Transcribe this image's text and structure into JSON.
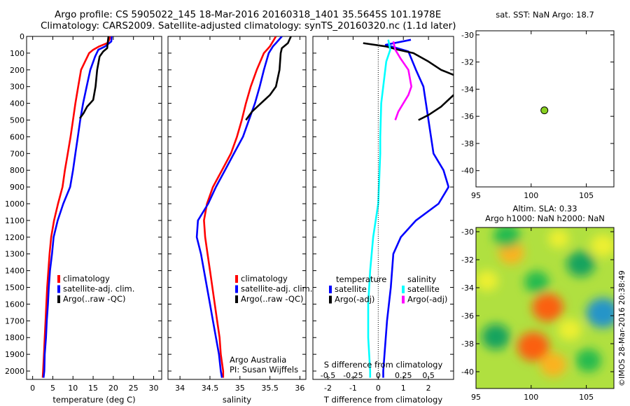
{
  "header": {
    "line1": "Argo profile: CS 5905022_145 18-Mar-2016 20160318_1401 35.5645S 101.1978E",
    "line2": "Climatology: CARS2009. Satellite-adjusted climatology: synTS_20160320.nc (1.1d later)"
  },
  "colors": {
    "climatology": "#ff0000",
    "satellite": "#0000ff",
    "argo": "#000000",
    "s_satellite": "#00ffff",
    "s_argo": "#ff00ff",
    "marker": "#88d020"
  },
  "chart_data": [
    {
      "type": "line",
      "id": "temperature",
      "xlabel": "temperature (deg C)",
      "xticks": [
        0,
        5,
        10,
        15,
        20,
        25,
        30
      ],
      "xlim": [
        -1.5,
        32
      ],
      "yticks": [
        0,
        100,
        200,
        300,
        400,
        500,
        600,
        700,
        800,
        900,
        1000,
        1100,
        1200,
        1300,
        1400,
        1500,
        1600,
        1700,
        1800,
        1900,
        2000
      ],
      "ylim": [
        2050,
        0
      ],
      "legend": [
        "climatology",
        "satellite-adj. clim.",
        "Argo(..raw -QC)"
      ],
      "series": [
        {
          "name": "climatology",
          "color": "#ff0000",
          "points": [
            [
              19.2,
              0
            ],
            [
              19,
              20
            ],
            [
              18.5,
              40
            ],
            [
              16.5,
              60
            ],
            [
              15,
              80
            ],
            [
              14,
              100
            ],
            [
              13,
              150
            ],
            [
              12,
              200
            ],
            [
              11.3,
              300
            ],
            [
              10.6,
              400
            ],
            [
              10,
              500
            ],
            [
              9.4,
              600
            ],
            [
              8.7,
              700
            ],
            [
              8,
              800
            ],
            [
              7.4,
              900
            ],
            [
              6.3,
              1000
            ],
            [
              5.3,
              1100
            ],
            [
              4.6,
              1200
            ],
            [
              4.2,
              1300
            ],
            [
              3.9,
              1400
            ],
            [
              3.6,
              1500
            ],
            [
              3.4,
              1600
            ],
            [
              3.2,
              1700
            ],
            [
              3,
              1800
            ],
            [
              2.8,
              1900
            ],
            [
              2.6,
              2000
            ],
            [
              2.5,
              2040
            ]
          ]
        },
        {
          "name": "satellite-adj. clim.",
          "color": "#0000ff",
          "points": [
            [
              19.6,
              0
            ],
            [
              19.5,
              30
            ],
            [
              18,
              60
            ],
            [
              16.3,
              80
            ],
            [
              15.5,
              120
            ],
            [
              14.3,
              200
            ],
            [
              13.4,
              300
            ],
            [
              12.5,
              400
            ],
            [
              11.8,
              500
            ],
            [
              11.2,
              600
            ],
            [
              10.6,
              700
            ],
            [
              10,
              800
            ],
            [
              9.3,
              900
            ],
            [
              7.6,
              1000
            ],
            [
              6.2,
              1100
            ],
            [
              5.2,
              1200
            ],
            [
              4.8,
              1300
            ],
            [
              4.3,
              1400
            ],
            [
              4,
              1500
            ],
            [
              3.8,
              1600
            ],
            [
              3.5,
              1700
            ],
            [
              3.3,
              1800
            ],
            [
              3,
              1900
            ],
            [
              2.9,
              2000
            ],
            [
              2.7,
              2040
            ]
          ]
        },
        {
          "name": "Argo(..raw -QC)",
          "color": "#000000",
          "points": [
            [
              18.8,
              0
            ],
            [
              18.6,
              40
            ],
            [
              18.5,
              70
            ],
            [
              17.5,
              90
            ],
            [
              16.6,
              120
            ],
            [
              16,
              200
            ],
            [
              15.6,
              300
            ],
            [
              15,
              380
            ],
            [
              13.5,
              420
            ],
            [
              12.6,
              460
            ],
            [
              11.7,
              490
            ]
          ]
        }
      ]
    },
    {
      "type": "line",
      "id": "salinity",
      "xlabel": "salinity",
      "xticks": [
        34,
        34.5,
        35,
        35.5,
        36
      ],
      "xlim": [
        33.8,
        36.1
      ],
      "yticks": [
        0,
        100,
        200,
        300,
        400,
        500,
        600,
        700,
        800,
        900,
        1000,
        1100,
        1200,
        1300,
        1400,
        1500,
        1600,
        1700,
        1800,
        1900,
        2000
      ],
      "ylim": [
        2050,
        0
      ],
      "legend": [
        "climatology",
        "satellite-adj. clim.",
        "Argo(..raw -QC)"
      ],
      "annotation": [
        "Argo Australia",
        "PI: Susan Wijffels"
      ],
      "series": [
        {
          "name": "climatology",
          "color": "#ff0000",
          "points": [
            [
              35.6,
              0
            ],
            [
              35.5,
              60
            ],
            [
              35.4,
              100
            ],
            [
              35.28,
              200
            ],
            [
              35.18,
              300
            ],
            [
              35.1,
              400
            ],
            [
              35.03,
              500
            ],
            [
              34.95,
              600
            ],
            [
              34.85,
              700
            ],
            [
              34.7,
              800
            ],
            [
              34.55,
              900
            ],
            [
              34.45,
              1000
            ],
            [
              34.4,
              1100
            ],
            [
              34.42,
              1200
            ],
            [
              34.46,
              1300
            ],
            [
              34.5,
              1400
            ],
            [
              34.54,
              1500
            ],
            [
              34.58,
              1600
            ],
            [
              34.62,
              1700
            ],
            [
              34.66,
              1800
            ],
            [
              34.68,
              1900
            ],
            [
              34.72,
              2000
            ],
            [
              34.72,
              2040
            ]
          ]
        },
        {
          "name": "satellite-adj. clim.",
          "color": "#0000ff",
          "points": [
            [
              35.7,
              0
            ],
            [
              35.6,
              40
            ],
            [
              35.55,
              60
            ],
            [
              35.48,
              100
            ],
            [
              35.4,
              200
            ],
            [
              35.33,
              300
            ],
            [
              35.25,
              400
            ],
            [
              35.15,
              500
            ],
            [
              35.05,
              600
            ],
            [
              34.9,
              700
            ],
            [
              34.75,
              800
            ],
            [
              34.6,
              900
            ],
            [
              34.47,
              1000
            ],
            [
              34.3,
              1100
            ],
            [
              34.28,
              1200
            ],
            [
              34.35,
              1300
            ],
            [
              34.4,
              1400
            ],
            [
              34.45,
              1500
            ],
            [
              34.5,
              1600
            ],
            [
              34.55,
              1700
            ],
            [
              34.6,
              1800
            ],
            [
              34.65,
              1900
            ],
            [
              34.68,
              2000
            ],
            [
              34.7,
              2040
            ]
          ]
        },
        {
          "name": "Argo(..raw -QC)",
          "color": "#000000",
          "points": [
            [
              35.85,
              0
            ],
            [
              35.8,
              40
            ],
            [
              35.7,
              70
            ],
            [
              35.68,
              100
            ],
            [
              35.66,
              200
            ],
            [
              35.6,
              300
            ],
            [
              35.5,
              350
            ],
            [
              35.35,
              400
            ],
            [
              35.2,
              450
            ],
            [
              35.1,
              500
            ]
          ]
        }
      ]
    },
    {
      "type": "line",
      "id": "difference",
      "xlabel": "T difference from climatology",
      "xlabel_top": "S difference from climatology",
      "xticks": [
        -2,
        -1,
        0,
        1,
        2
      ],
      "xlim": [
        -2.6,
        3.0
      ],
      "xticks_top": [
        -0.5,
        -0.25,
        0,
        0.25,
        0.5
      ],
      "xlim_top": [
        -0.65,
        0.75
      ],
      "yticks": [
        0,
        100,
        200,
        300,
        400,
        500,
        600,
        700,
        800,
        900,
        1000,
        1100,
        1200,
        1300,
        1400,
        1500,
        1600,
        1700,
        1800,
        1900,
        2000
      ],
      "ylim": [
        2050,
        0
      ],
      "legend": {
        "temperature": [
          "satellite",
          "Argo(-adj)"
        ],
        "salinity": [
          "satellite",
          "Argo(-adj)"
        ]
      },
      "series": [
        {
          "name": "T satellite",
          "axis": "T",
          "color": "#0000ff",
          "points": [
            [
              1.3,
              20
            ],
            [
              0.3,
              50
            ],
            [
              1.2,
              90
            ],
            [
              1.5,
              200
            ],
            [
              1.8,
              300
            ],
            [
              1.9,
              400
            ],
            [
              2,
              500
            ],
            [
              2.1,
              600
            ],
            [
              2.2,
              700
            ],
            [
              2.6,
              800
            ],
            [
              2.8,
              900
            ],
            [
              2.4,
              1000
            ],
            [
              1.5,
              1100
            ],
            [
              0.9,
              1200
            ],
            [
              0.6,
              1300
            ],
            [
              0.5,
              1500
            ],
            [
              0.35,
              1700
            ],
            [
              0.25,
              1900
            ],
            [
              0.2,
              2000
            ],
            [
              0.2,
              2040
            ]
          ]
        },
        {
          "name": "T Argo(-adj)",
          "axis": "T",
          "color": "#000000",
          "points": [
            [
              -0.6,
              40
            ],
            [
              0.3,
              60
            ],
            [
              0.8,
              80
            ],
            [
              1.4,
              100
            ],
            [
              2,
              150
            ],
            [
              2.5,
              200
            ],
            [
              3,
              230
            ]
          ]
        },
        {
          "name": "T Argo(-adj) deep",
          "axis": "T",
          "color": "#000000",
          "points": [
            [
              3,
              350
            ],
            [
              2.5,
              420
            ],
            [
              2,
              470
            ],
            [
              1.6,
              500
            ]
          ]
        },
        {
          "name": "S satellite",
          "axis": "S",
          "color": "#00ffff",
          "points": [
            [
              0.1,
              20
            ],
            [
              0.12,
              80
            ],
            [
              0.08,
              150
            ],
            [
              0.06,
              250
            ],
            [
              0.03,
              400
            ],
            [
              0.02,
              600
            ],
            [
              0.02,
              700
            ],
            [
              0.01,
              850
            ],
            [
              0,
              1000
            ],
            [
              -0.05,
              1200
            ],
            [
              -0.08,
              1400
            ],
            [
              -0.1,
              1600
            ],
            [
              -0.1,
              1800
            ],
            [
              -0.08,
              2000
            ],
            [
              -0.08,
              2040
            ]
          ]
        },
        {
          "name": "S Argo(-adj)",
          "axis": "S",
          "color": "#ff00ff",
          "points": [
            [
              0.15,
              30
            ],
            [
              0.17,
              80
            ],
            [
              0.22,
              130
            ],
            [
              0.3,
              200
            ],
            [
              0.33,
              300
            ],
            [
              0.3,
              350
            ],
            [
              0.25,
              400
            ],
            [
              0.2,
              450
            ],
            [
              0.17,
              500
            ]
          ]
        }
      ]
    },
    {
      "type": "scatter",
      "id": "sst-map",
      "title": "sat. SST: NaN Argo: 18.7",
      "xticks": [
        95,
        100,
        105
      ],
      "xlim": [
        95,
        107.5
      ],
      "yticks": [
        -30,
        -32,
        -34,
        -36,
        -38,
        -40
      ],
      "ylim": [
        -41.2,
        -29.7
      ],
      "points": [
        [
          101.2,
          -35.56
        ]
      ]
    },
    {
      "type": "heatmap",
      "id": "sla-map",
      "title_lines": [
        "Altim. SLA: 0.33",
        "Argo h1000: NaN h2000: NaN"
      ],
      "xticks": [
        95,
        100,
        105
      ],
      "xlim": [
        95,
        107.5
      ],
      "yticks": [
        -30,
        -32,
        -34,
        -36,
        -38,
        -40
      ],
      "ylim": [
        -41.2,
        -29.7
      ],
      "blobs": [
        {
          "lon": 100.2,
          "lat": -38.2,
          "level": 0.9
        },
        {
          "lon": 101.5,
          "lat": -35.4,
          "level": 0.85
        },
        {
          "lon": 102,
          "lat": -39.5,
          "level": 0.6
        },
        {
          "lon": 98.2,
          "lat": -31.5,
          "level": 0.55
        },
        {
          "lon": 106.5,
          "lat": -35.8,
          "level": -0.95
        },
        {
          "lon": 96.8,
          "lat": -37.5,
          "level": -0.7
        },
        {
          "lon": 97.8,
          "lat": -30.3,
          "level": -0.6
        },
        {
          "lon": 104.5,
          "lat": -32.3,
          "level": -0.7
        },
        {
          "lon": 100.5,
          "lat": -33.6,
          "level": -0.5
        },
        {
          "lon": 105.2,
          "lat": -39.2,
          "level": -0.55
        },
        {
          "lon": 103.5,
          "lat": -37,
          "level": 0.45
        },
        {
          "lon": 96,
          "lat": -33.5,
          "level": 0.4
        },
        {
          "lon": 102.5,
          "lat": -30.5,
          "level": 0.3
        },
        {
          "lon": 106.5,
          "lat": -31,
          "level": 0.5
        }
      ]
    }
  ],
  "footer_stamp": "©IMOS 28-Mar-2016 20:38:49"
}
